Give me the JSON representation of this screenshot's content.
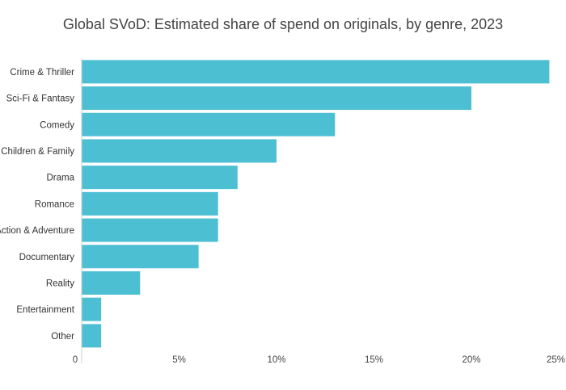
{
  "chart_data": {
    "type": "bar",
    "orientation": "horizontal",
    "title": "Global SVoD: Estimated share of spend on originals, by genre, 2023",
    "xlabel": "",
    "ylabel": "",
    "categories": [
      "Crime & Thriller",
      "Sci-Fi & Fantasy",
      "Comedy",
      "Children & Family",
      "Drama",
      "Romance",
      "Action & Adventure",
      "Documentary",
      "Reality",
      "Entertainment",
      "Other"
    ],
    "values": [
      24,
      20,
      13,
      10,
      8,
      7,
      7,
      6,
      3,
      1,
      1
    ],
    "unit": "%",
    "xlim": [
      0,
      24
    ],
    "x_ticks": [
      0,
      5,
      10,
      15,
      20,
      25
    ],
    "x_tick_labels": [
      "0",
      "5%",
      "10%",
      "15%",
      "20%",
      "25%"
    ],
    "grid": false,
    "bar_color": "#4dbfd3"
  }
}
